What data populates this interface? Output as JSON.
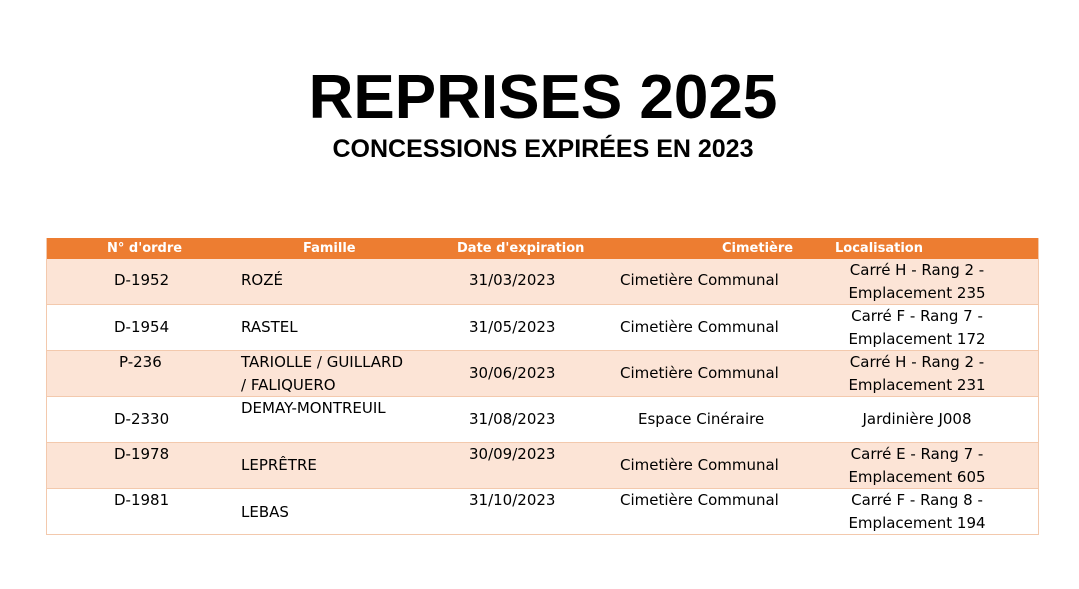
{
  "title": "REPRISES 2025",
  "subtitle": "CONCESSIONS EXPIRÉES EN 2023",
  "table": {
    "headers": {
      "ordre": "N° d'ordre",
      "famille": "Famille",
      "date": "Date d'expiration",
      "cimetiere": "Cimetière",
      "localisation": "Localisation"
    },
    "rows": [
      {
        "ordre": "D-1952",
        "famille_1": "ROZÉ",
        "famille_2": "",
        "date": "31/03/2023",
        "cimetiere": "Cimetière Communal",
        "loc_1": "Carré H - Rang 2 -",
        "loc_2": "Emplacement 235"
      },
      {
        "ordre": "D-1954",
        "famille_1": "RASTEL",
        "famille_2": "",
        "date": "31/05/2023",
        "cimetiere": "Cimetière Communal",
        "loc_1": "Carré F - Rang 7 -",
        "loc_2": "Emplacement 172"
      },
      {
        "ordre": "P-236",
        "famille_1": "TARIOLLE / GUILLARD",
        "famille_2": "/ FALIQUERO",
        "date": "30/06/2023",
        "cimetiere": "Cimetière Communal",
        "loc_1": "Carré H - Rang 2 -",
        "loc_2": "Emplacement 231"
      },
      {
        "ordre": "D-2330",
        "famille_1": "DEMAY-MONTREUIL",
        "famille_2": "",
        "date": "31/08/2023",
        "cimetiere": "Espace Cinéraire",
        "loc_1": "Jardinière J008",
        "loc_2": ""
      },
      {
        "ordre": "D-1978",
        "famille_1": "LEPRÊTRE",
        "famille_2": "",
        "date": "30/09/2023",
        "cimetiere": "Cimetière Communal",
        "loc_1": "Carré E - Rang 7 -",
        "loc_2": "Emplacement 605"
      },
      {
        "ordre": "D-1981",
        "famille_1": "LEBAS",
        "famille_2": "",
        "date": "31/10/2023",
        "cimetiere": "Cimetière Communal",
        "loc_1": "Carré F - Rang 8 -",
        "loc_2": "Emplacement 194"
      }
    ]
  }
}
